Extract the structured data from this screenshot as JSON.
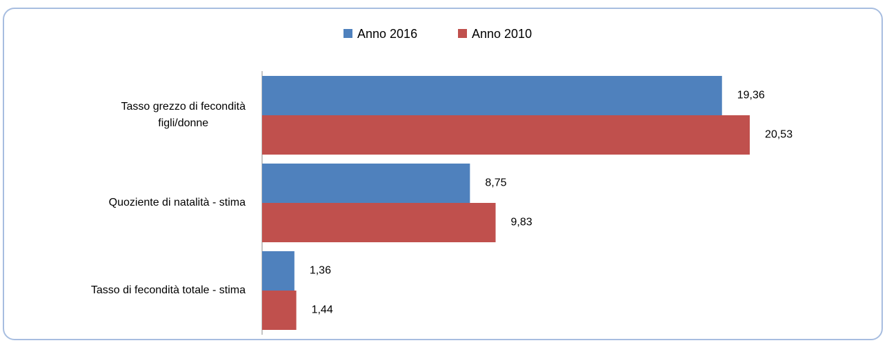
{
  "chart_data": {
    "type": "barh",
    "categories": [
      "Tasso grezzo di fecondità\nfigli/donne",
      "Quoziente di natalità - stima",
      "Tasso di fecondità totale - stima"
    ],
    "series": [
      {
        "name": "Anno 2016",
        "color": "#4f81bd",
        "values": [
          19.36,
          8.75,
          1.36
        ],
        "value_labels": [
          "19,36",
          "8,75",
          "1,36"
        ]
      },
      {
        "name": "Anno 2010",
        "color": "#c0504d",
        "values": [
          20.53,
          9.83,
          1.44
        ],
        "value_labels": [
          "20,53",
          "9,83",
          "1,44"
        ]
      }
    ],
    "xlim": [
      0,
      25
    ],
    "legend": "top"
  }
}
